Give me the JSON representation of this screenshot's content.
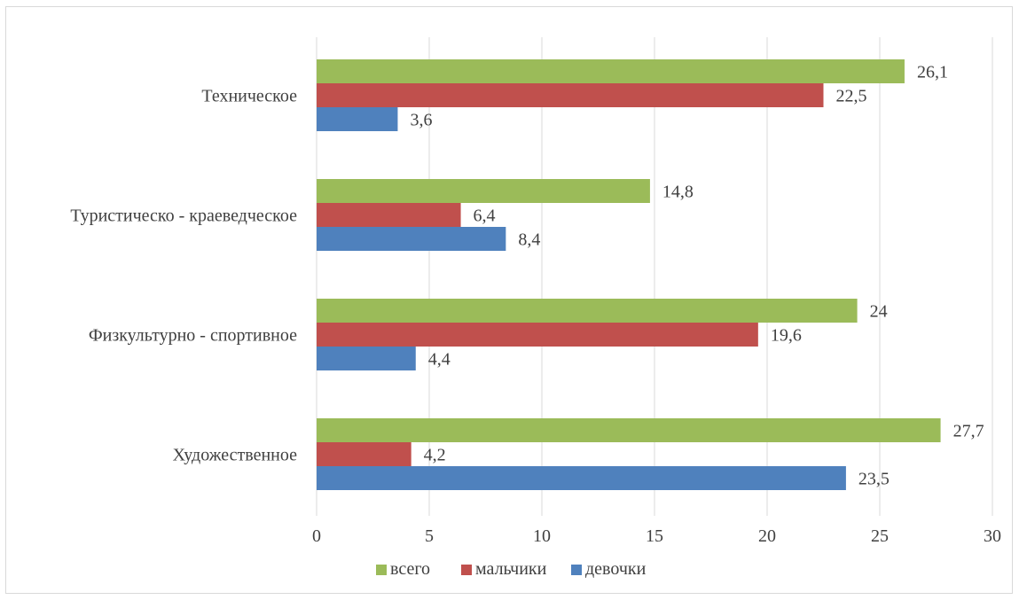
{
  "chart_data": {
    "type": "bar",
    "orientation": "horizontal",
    "categories": [
      "Техническое",
      "Туристическо - краеведческое",
      "Физкультурно - спортивное",
      "Художественное"
    ],
    "series": [
      {
        "name": "всего",
        "color": "#9bbb59",
        "values": [
          26.1,
          14.8,
          24,
          27.7
        ],
        "labels": [
          "26,1",
          "14,8",
          "24",
          "27,7"
        ]
      },
      {
        "name": "мальчики",
        "color": "#c0504d",
        "values": [
          22.5,
          6.4,
          19.6,
          4.2
        ],
        "labels": [
          "22,5",
          "6,4",
          "19,6",
          "4,2"
        ]
      },
      {
        "name": "девочки",
        "color": "#4f81bd",
        "values": [
          3.6,
          8.4,
          4.4,
          23.5
        ],
        "labels": [
          "3,6",
          "8,4",
          "4,4",
          "23,5"
        ]
      }
    ],
    "xlim": [
      0,
      30
    ],
    "xticks": [
      0,
      5,
      10,
      15,
      20,
      25,
      30
    ],
    "xtick_labels": [
      "0",
      "5",
      "10",
      "15",
      "20",
      "25",
      "30"
    ],
    "grid": true,
    "legend": "bottom",
    "title": "",
    "xlabel": "",
    "ylabel": ""
  }
}
